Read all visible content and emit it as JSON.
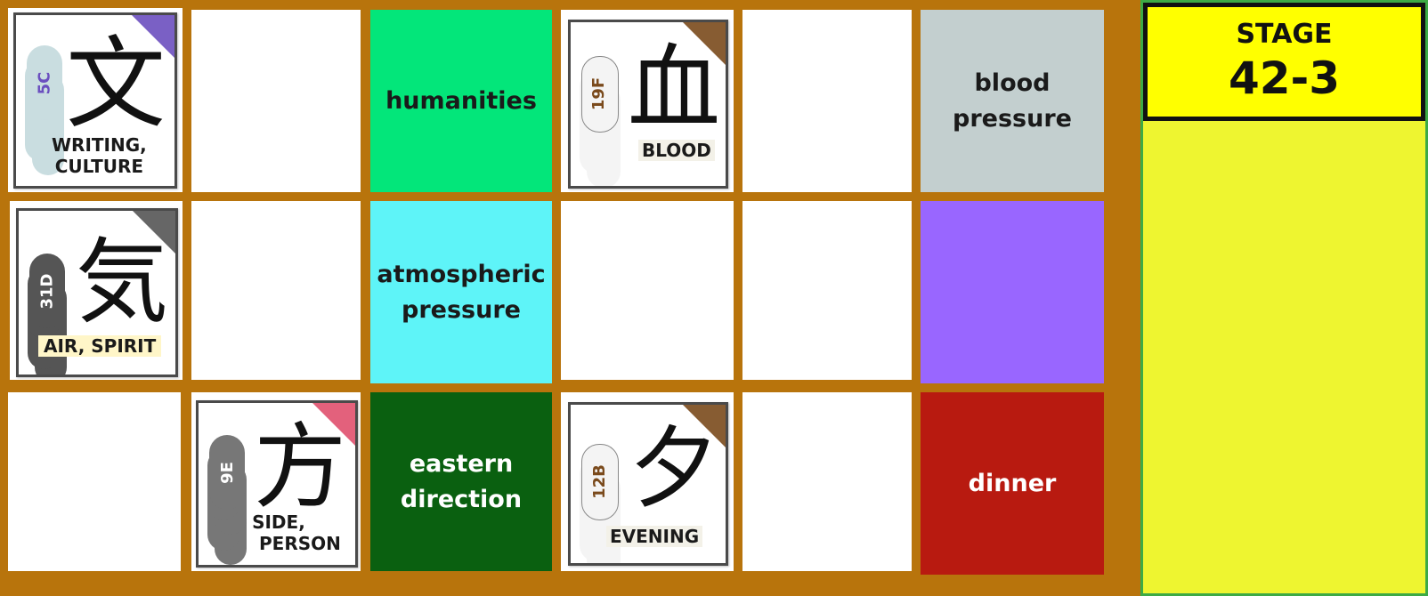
{
  "board": {
    "background_color": "#b8740c",
    "cards": [
      {
        "kanji": "文",
        "code": "5C",
        "meaning_line1": "WRITING,",
        "meaning_line2": "CULTURE",
        "corner_color": "#6b4fbf",
        "cloud_color": "#c9dde0",
        "code_color": "#6b4fbf"
      },
      {
        "kanji": "血",
        "code": "19F",
        "meaning": "BLOOD",
        "corner_color": "#7a4a1c",
        "cloud_color": "#ffffff",
        "code_color": "#7a4a1c"
      },
      {
        "kanji": "気",
        "code": "31D",
        "meaning": "AIR, SPIRIT",
        "corner_color": "#555555",
        "cloud_color": "#555555",
        "code_color": "#ffffff"
      },
      {
        "kanji": "方",
        "code": "9E",
        "meaning_line1": "SIDE,",
        "meaning_line2": "PERSON",
        "corner_color": "#e0506e",
        "cloud_color": "#777777",
        "code_color": "#ffffff"
      },
      {
        "kanji": "夕",
        "code": "12B",
        "meaning": "EVENING",
        "corner_color": "#7a4a1c",
        "cloud_color": "#ffffff",
        "code_color": "#7a4a1c"
      }
    ],
    "words": [
      {
        "line1": "humanities",
        "line2": "",
        "color": "#03e67a",
        "text_color": "#1a1a1a"
      },
      {
        "line1": "blood",
        "line2": "pressure",
        "color": "#c3cfcf",
        "text_color": "#1a1a1a"
      },
      {
        "line1": "atmospheric",
        "line2": "pressure",
        "color": "#5ef4f8",
        "text_color": "#1a1a1a"
      },
      {
        "line1": "",
        "line2": "",
        "color": "#9966ff",
        "text_color": "#1a1a1a"
      },
      {
        "line1": "eastern",
        "line2": "direction",
        "color": "#0a6010",
        "text_color": "#ffffff"
      },
      {
        "line1": "dinner",
        "line2": "",
        "color": "#b81a10",
        "text_color": "#ffffff"
      }
    ]
  },
  "stage": {
    "label": "STAGE",
    "number": "42-3",
    "panel_color": "#eef530",
    "box_color": "#ffff00"
  }
}
